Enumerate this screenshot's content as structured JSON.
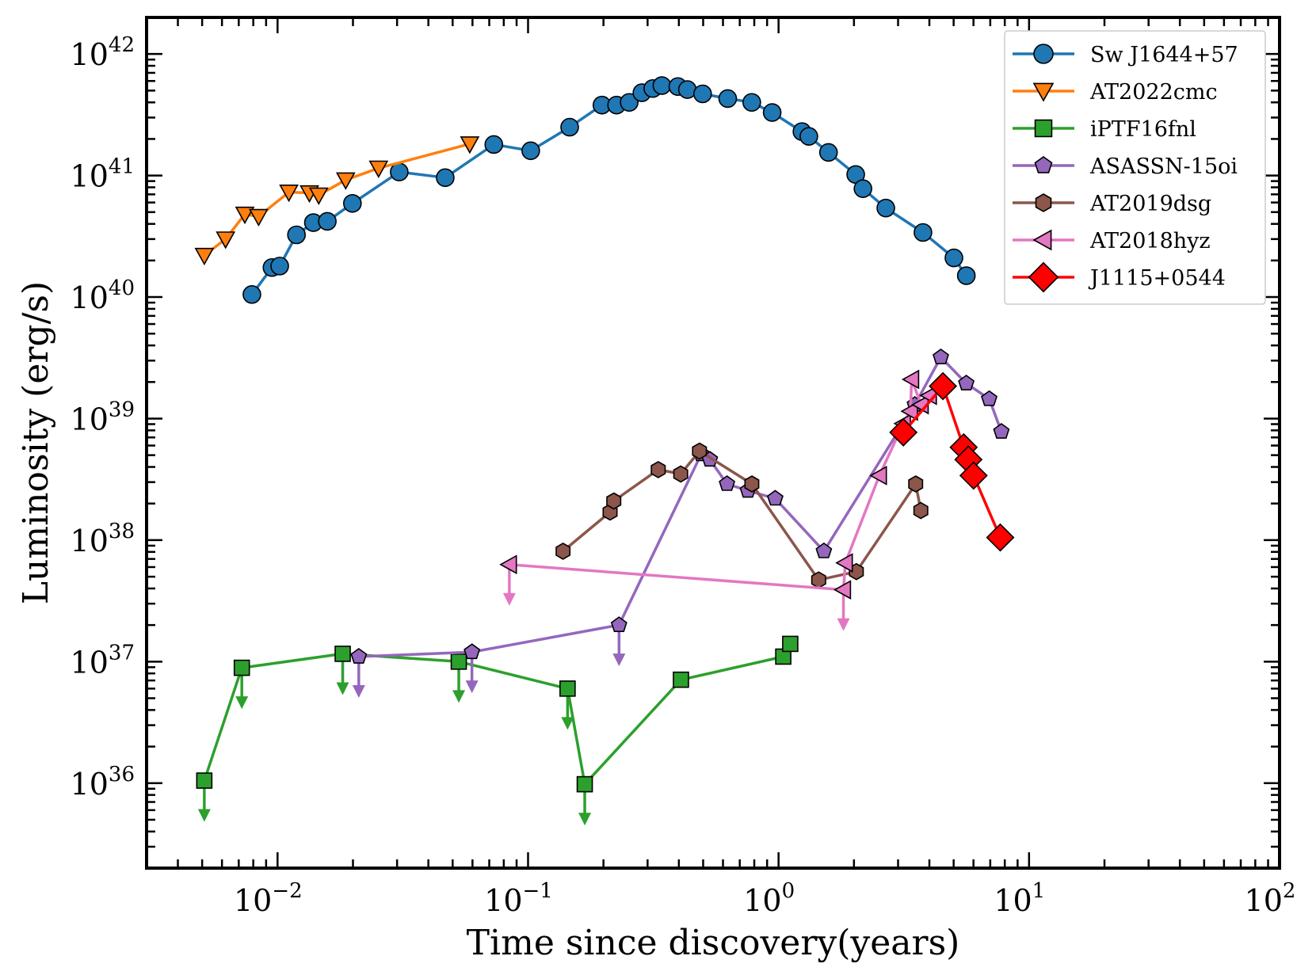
{
  "chart_data": {
    "type": "line",
    "title": "",
    "xlabel": "Time since discovery(years)",
    "ylabel": "Luminosity (erg/s)",
    "xscale": "log",
    "yscale": "log",
    "xlim": [
      0.003,
      100
    ],
    "ylim": [
      2e+35,
      2e+42
    ],
    "legend_position": "top-right",
    "x_ticks": [
      {
        "base": "10",
        "exp": "−2",
        "value": 0.01
      },
      {
        "base": "10",
        "exp": "−1",
        "value": 0.1
      },
      {
        "base": "10",
        "exp": "0",
        "value": 1
      },
      {
        "base": "10",
        "exp": "1",
        "value": 10
      },
      {
        "base": "10",
        "exp": "2",
        "value": 100
      }
    ],
    "y_ticks": [
      {
        "base": "10",
        "exp": "36",
        "value": 1e+36
      },
      {
        "base": "10",
        "exp": "37",
        "value": 1e+37
      },
      {
        "base": "10",
        "exp": "38",
        "value": 1e+38
      },
      {
        "base": "10",
        "exp": "39",
        "value": 1e+39
      },
      {
        "base": "10",
        "exp": "40",
        "value": 1e+40
      },
      {
        "base": "10",
        "exp": "41",
        "value": 1e+41
      },
      {
        "base": "10",
        "exp": "42",
        "value": 1e+42
      }
    ],
    "series": [
      {
        "name": "Sw J1644+57",
        "color": "#1f77b4",
        "marker": "circle",
        "x": [
          0.0079,
          0.0095,
          0.0102,
          0.0119,
          0.0139,
          0.0158,
          0.0199,
          0.0306,
          0.0467,
          0.073,
          0.1025,
          0.1466,
          0.1972,
          0.2256,
          0.2534,
          0.2847,
          0.3147,
          0.3422,
          0.3962,
          0.4326,
          0.4975,
          0.6266,
          0.7817,
          0.9431,
          1.2398,
          1.3212,
          1.5825,
          2.0325,
          2.1724,
          2.6802,
          3.7708,
          5.0131,
          5.6173
        ],
        "y": [
          1.05e+40,
          1.75e+40,
          1.8e+40,
          3.25e+40,
          4.1e+40,
          4.2e+40,
          5.9e+40,
          1.07e+41,
          9.6e+40,
          1.8e+41,
          1.6e+41,
          2.5e+41,
          3.8e+41,
          3.8e+41,
          4e+41,
          4.8e+41,
          5.2e+41,
          5.5e+41,
          5.4e+41,
          5.1e+41,
          4.7e+41,
          4.3e+41,
          4e+41,
          3.3e+41,
          2.3e+41,
          2.1e+41,
          1.55e+41,
          1.02e+41,
          7.8e+40,
          5.4e+40,
          3.4e+40,
          2.1e+40,
          1.5e+40
        ],
        "upper_limit": []
      },
      {
        "name": "AT2022cmc",
        "color": "#ff7f0e",
        "marker": "triangle-down",
        "x": [
          0.0051,
          0.0062,
          0.0074,
          0.0084,
          0.0111,
          0.0134,
          0.0146,
          0.0187,
          0.0253,
          0.0585
        ],
        "y": [
          2.2e+40,
          3e+40,
          4.8e+40,
          4.6e+40,
          7.3e+40,
          7.2e+40,
          6.9e+40,
          9.2e+40,
          1.15e+41,
          1.82e+41
        ],
        "upper_limit": []
      },
      {
        "name": "iPTF16fnl",
        "color": "#2ca02c",
        "marker": "square",
        "x": [
          0.0051,
          0.0072,
          0.0182,
          0.0529,
          0.1438,
          0.1684,
          0.4077,
          1.0443,
          1.1133
        ],
        "y": [
          1.05e+36,
          8.9e+36,
          1.16e+37,
          1e+37,
          6e+36,
          9.8e+35,
          7.1e+36,
          1.1e+37,
          1.4e+37
        ],
        "upper_limit": [
          true,
          true,
          true,
          true,
          true,
          true,
          false,
          false,
          false
        ]
      },
      {
        "name": "ASASSN-15oi",
        "color": "#9467bd",
        "marker": "pentagon",
        "x": [
          0.0211,
          0.0597,
          0.2308,
          0.4913,
          0.5318,
          0.6226,
          0.7546,
          0.9698,
          1.5167,
          3.5006,
          4.4444,
          5.6146,
          6.9339,
          7.7548
        ],
        "y": [
          1.1e+37,
          1.2e+37,
          2e+37,
          5.1e+38,
          4.6e+38,
          2.9e+38,
          2.55e+38,
          2.2e+38,
          8.1e+37,
          1.3e+39,
          3.2e+39,
          1.95e+39,
          1.45e+39,
          7.8e+38
        ],
        "upper_limit": [
          true,
          true,
          true,
          false,
          false,
          false,
          false,
          false,
          false,
          false,
          false,
          false,
          false,
          false
        ]
      },
      {
        "name": "AT2019dsg",
        "color": "#8c564b",
        "marker": "hexagon",
        "x": [
          0.1379,
          0.2125,
          0.2199,
          0.3309,
          0.4068,
          0.4835,
          0.7825,
          1.4459,
          2.0447,
          3.5284,
          3.6975
        ],
        "y": [
          8.1e+37,
          1.7e+38,
          2.1e+38,
          3.8e+38,
          3.5e+38,
          5.4e+38,
          2.9e+38,
          4.7e+37,
          5.5e+37,
          2.9e+38,
          1.75e+38
        ],
        "upper_limit": []
      },
      {
        "name": "AT2018hyz",
        "color": "#e377c2",
        "marker": "triangle-left",
        "x": [
          0.0842,
          1.8158,
          1.8469,
          2.5264,
          3.1498,
          3.3596,
          3.3981,
          3.7101,
          4.0008
        ],
        "y": [
          6.3e+37,
          3.9e+37,
          6.5e+37,
          3.4e+38,
          9.1e+38,
          1.15e+39,
          2.1e+39,
          1.3e+39,
          1.55e+39
        ],
        "upper_limit": [
          true,
          true,
          false,
          false,
          false,
          false,
          false,
          false,
          false
        ]
      },
      {
        "name": "J1115+0544",
        "color": "#ff0000",
        "marker": "diamond",
        "x": [
          3.1498,
          4.5297,
          5.4842,
          5.7279,
          6.0049,
          7.6768
        ],
        "y": [
          7.7e+38,
          1.85e+39,
          5.8e+38,
          4.6e+38,
          3.4e+38,
          1.05e+38
        ],
        "upper_limit": []
      }
    ]
  }
}
